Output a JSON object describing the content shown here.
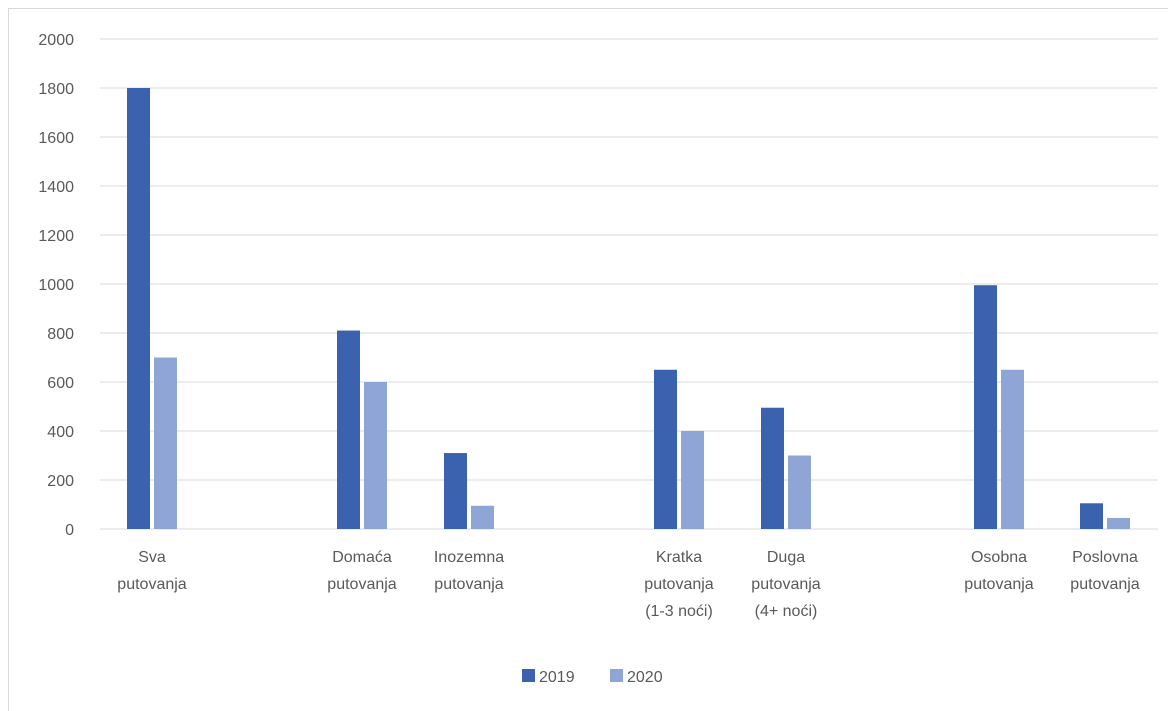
{
  "chart_data": {
    "type": "bar",
    "categories": [
      [
        "Sva",
        "putovanja"
      ],
      [
        "Domaća",
        "putovanja"
      ],
      [
        "Inozemna",
        "putovanja"
      ],
      [
        "Kratka",
        "putovanja",
        "(1-3 noći)"
      ],
      [
        "Duga",
        "putovanja",
        "(4+ noći)"
      ],
      [
        "Osobna",
        "putovanja"
      ],
      [
        "Poslovna",
        "putovanja"
      ]
    ],
    "series": [
      {
        "name": "2019",
        "values": [
          1800,
          810,
          310,
          650,
          495,
          995,
          105
        ]
      },
      {
        "name": "2020",
        "values": [
          700,
          600,
          95,
          400,
          300,
          650,
          45
        ]
      }
    ],
    "colors": [
      "#3a62ae",
      "#8ea5d6"
    ],
    "ylim": [
      0,
      2000
    ],
    "yticks": [
      "0",
      "200",
      "400",
      "600",
      "800",
      "1000",
      "1200",
      "1400",
      "1600",
      "1800",
      "2000"
    ],
    "grid": true,
    "legend_position": "bottom"
  }
}
